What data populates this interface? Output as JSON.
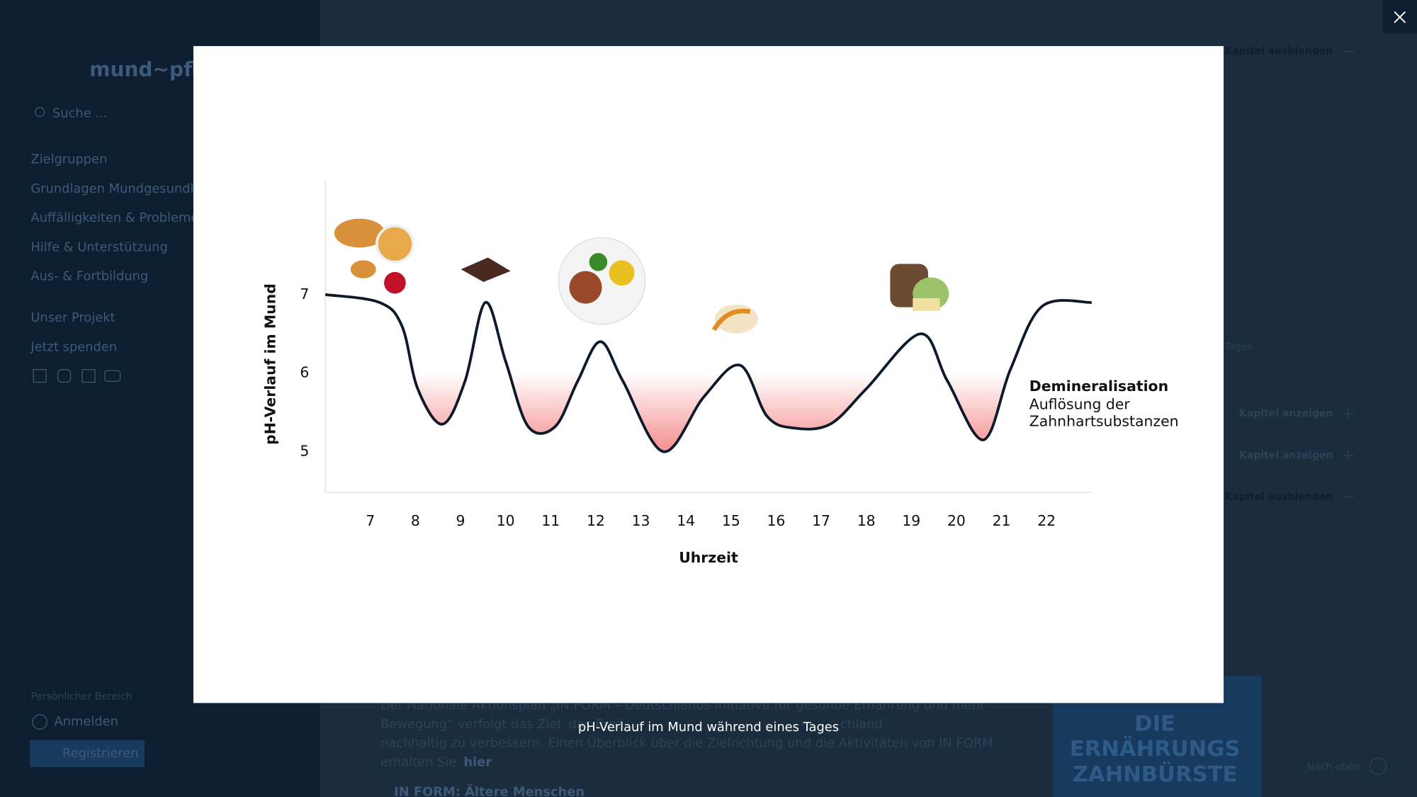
{
  "sidebar": {
    "logo": "mund~pfl",
    "search": "Suche ...",
    "nav": [
      "Zielgruppen",
      "Grundlagen Mundgesundheit",
      "Auffälligkeiten & Probleme",
      "Hilfe & Unterstützung",
      "Aus- & Fortbildung"
    ],
    "nav2": [
      "Unser Projekt",
      "Jetzt spenden"
    ],
    "personal_title": "Persönlicher Bereich",
    "login": "Anmelden",
    "register": "Registrieren"
  },
  "main": {
    "chapters": [
      "Kapitel ausblenden",
      "Kapitel anzeigen",
      "Kapitel anzeigen",
      "Kapitel ausblenden"
    ],
    "partial_caption": "Tages",
    "paragraph": [
      "Der Nationale Aktionsplan „IN FORM – Deutschlands Initiative für gesunde Ernährung und mehr",
      "Bewegung“ verfolgt das Ziel, das Ernä",
      "chland",
      "nachhaltig zu verbessern. Einen Überblick über die Zielrichtung und die Aktivitäten von IN FORM",
      "erhalten Sie"
    ],
    "link": "hier",
    "link2": "IN FORM: Ältere Menschen",
    "banner": [
      "DIE",
      "ERNÄHRUNGS",
      "ZAHNBÜRSTE"
    ],
    "to_top": "Nach oben"
  },
  "lightbox": {
    "caption": "pH-Verlauf im Mund während eines Tages"
  },
  "chart_data": {
    "type": "line",
    "x_label": "Uhrzeit",
    "y_label": "pH-Verlauf im Mund",
    "annotation": {
      "title": "Demineralisation",
      "lines": [
        "Auflösung der",
        "Zahnhartsubstanzen"
      ]
    },
    "x": [
      6,
      7.2,
      7.7,
      8.05,
      8.6,
      9.1,
      9.55,
      10.0,
      10.5,
      11.1,
      11.6,
      12.1,
      12.6,
      13.5,
      14.4,
      15.2,
      15.8,
      16.4,
      17.2,
      18.0,
      19.2,
      19.8,
      20.6,
      21.2,
      21.9,
      23
    ],
    "values": [
      7.0,
      6.9,
      6.6,
      5.8,
      5.35,
      5.9,
      6.9,
      6.15,
      5.32,
      5.32,
      5.9,
      6.4,
      5.9,
      5.0,
      5.7,
      6.1,
      5.45,
      5.3,
      5.35,
      5.8,
      6.5,
      5.9,
      5.15,
      6.05,
      6.85,
      6.9
    ],
    "color": "#0d1a2b",
    "threshold": 6,
    "threshold_color": "#f58c8c",
    "xlim": [
      6,
      23
    ],
    "ylim": [
      4.48,
      8.45
    ],
    "xticks": [
      7,
      8,
      9,
      10,
      11,
      12,
      13,
      14,
      15,
      16,
      17,
      18,
      19,
      20,
      21,
      22
    ],
    "yticks": [
      5,
      6,
      7
    ]
  }
}
